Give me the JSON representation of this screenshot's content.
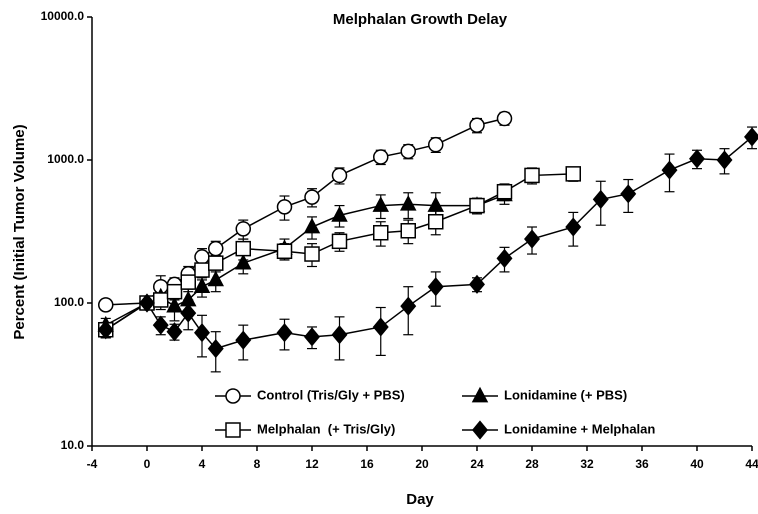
{
  "chart_data": {
    "type": "line",
    "title": "Melphalan Growth Delay",
    "xlabel": "Day",
    "ylabel": "Percent (Initial Tumor Volume)",
    "log_y": true,
    "legend": "bottom",
    "xlim": [
      -4,
      44
    ],
    "xticks": [
      -4,
      0,
      4,
      8,
      12,
      16,
      20,
      24,
      28,
      32,
      36,
      40,
      44
    ],
    "ylim": [
      10,
      10000
    ],
    "yticks": [
      {
        "value": 10,
        "label": "10.0"
      },
      {
        "value": 100,
        "label": "100.0"
      },
      {
        "value": 1000,
        "label": "1000.0"
      },
      {
        "value": 10000,
        "label": "10000.0"
      }
    ],
    "series": [
      {
        "name": "Control (Tris/Gly + PBS)",
        "color": "#000000",
        "marker": "circle",
        "fill": "#ffffff",
        "x": [
          -3,
          0,
          1,
          2,
          3,
          4,
          5,
          7,
          10,
          12,
          14,
          17,
          19,
          21,
          24,
          26
        ],
        "values": [
          97,
          100,
          130,
          135,
          160,
          210,
          240,
          330,
          470,
          550,
          780,
          1050,
          1150,
          1280,
          1750,
          1950
        ],
        "errors": [
          8,
          8,
          25,
          15,
          20,
          30,
          30,
          50,
          90,
          80,
          100,
          120,
          130,
          150,
          200,
          200
        ]
      },
      {
        "name": "Lonidamine (+ PBS)",
        "color": "#000000",
        "marker": "triangle",
        "fill": "#000000",
        "x": [
          -3,
          0,
          1,
          2,
          3,
          4,
          5,
          7,
          10,
          12,
          14,
          17,
          19,
          21,
          24,
          26
        ],
        "values": [
          70,
          100,
          110,
          95,
          105,
          130,
          145,
          190,
          240,
          340,
          410,
          480,
          490,
          480,
          480,
          570
        ],
        "errors": [
          8,
          8,
          15,
          20,
          20,
          20,
          25,
          30,
          40,
          60,
          70,
          90,
          100,
          110,
          60,
          80
        ]
      },
      {
        "name": "Melphalan  (+ Tris/Gly)",
        "color": "#000000",
        "marker": "square",
        "fill": "#ffffff",
        "x": [
          -3,
          0,
          1,
          2,
          3,
          4,
          5,
          7,
          10,
          12,
          14,
          17,
          19,
          21,
          24,
          26,
          28,
          31
        ],
        "values": [
          65,
          100,
          105,
          120,
          140,
          170,
          190,
          240,
          230,
          220,
          270,
          310,
          320,
          370,
          480,
          600,
          780,
          800
        ],
        "errors": [
          8,
          8,
          15,
          15,
          20,
          25,
          25,
          40,
          30,
          40,
          40,
          60,
          60,
          70,
          60,
          80,
          100,
          90
        ]
      },
      {
        "name": "Lonidamine + Melphalan",
        "color": "#000000",
        "marker": "diamond",
        "fill": "#000000",
        "x": [
          -3,
          0,
          1,
          2,
          3,
          4,
          5,
          7,
          10,
          12,
          14,
          17,
          19,
          21,
          24,
          26,
          28,
          31,
          33,
          35,
          38,
          40,
          42,
          44
        ],
        "values": [
          65,
          100,
          70,
          63,
          85,
          62,
          48,
          55,
          62,
          58,
          60,
          68,
          95,
          130,
          135,
          205,
          280,
          340,
          530,
          580,
          850,
          1020,
          1000,
          1450
        ],
        "errors": [
          8,
          8,
          10,
          8,
          20,
          20,
          15,
          15,
          15,
          10,
          20,
          25,
          35,
          35,
          15,
          40,
          60,
          90,
          180,
          150,
          250,
          150,
          200,
          250
        ]
      }
    ]
  }
}
